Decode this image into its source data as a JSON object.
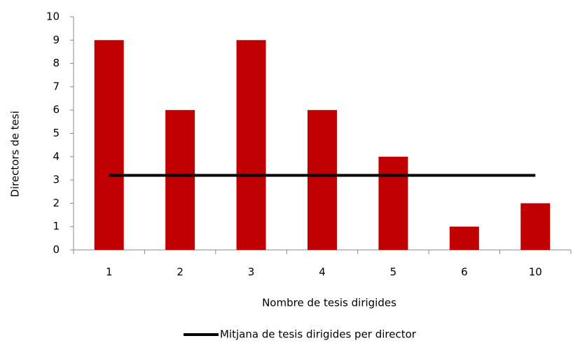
{
  "chart_data": {
    "type": "bar",
    "categories": [
      "1",
      "2",
      "3",
      "4",
      "5",
      "6",
      "10"
    ],
    "series": [
      {
        "type": "bar",
        "color": "#c00000",
        "values": [
          9,
          6,
          9,
          6,
          4,
          1,
          2
        ]
      },
      {
        "type": "line",
        "name": "Mitjana de tesis dirigides per director",
        "color": "#000000",
        "values": [
          3.2,
          3.2,
          3.2,
          3.2,
          3.2,
          3.2,
          3.2
        ]
      }
    ],
    "xlabel": "Nombre de tesis dirigides",
    "ylabel": "Directors de tesi",
    "ylim": [
      0,
      10
    ],
    "yticks": [
      0,
      1,
      2,
      3,
      4,
      5,
      6,
      7,
      8,
      9,
      10
    ],
    "grid": false,
    "legend": "bottom"
  }
}
